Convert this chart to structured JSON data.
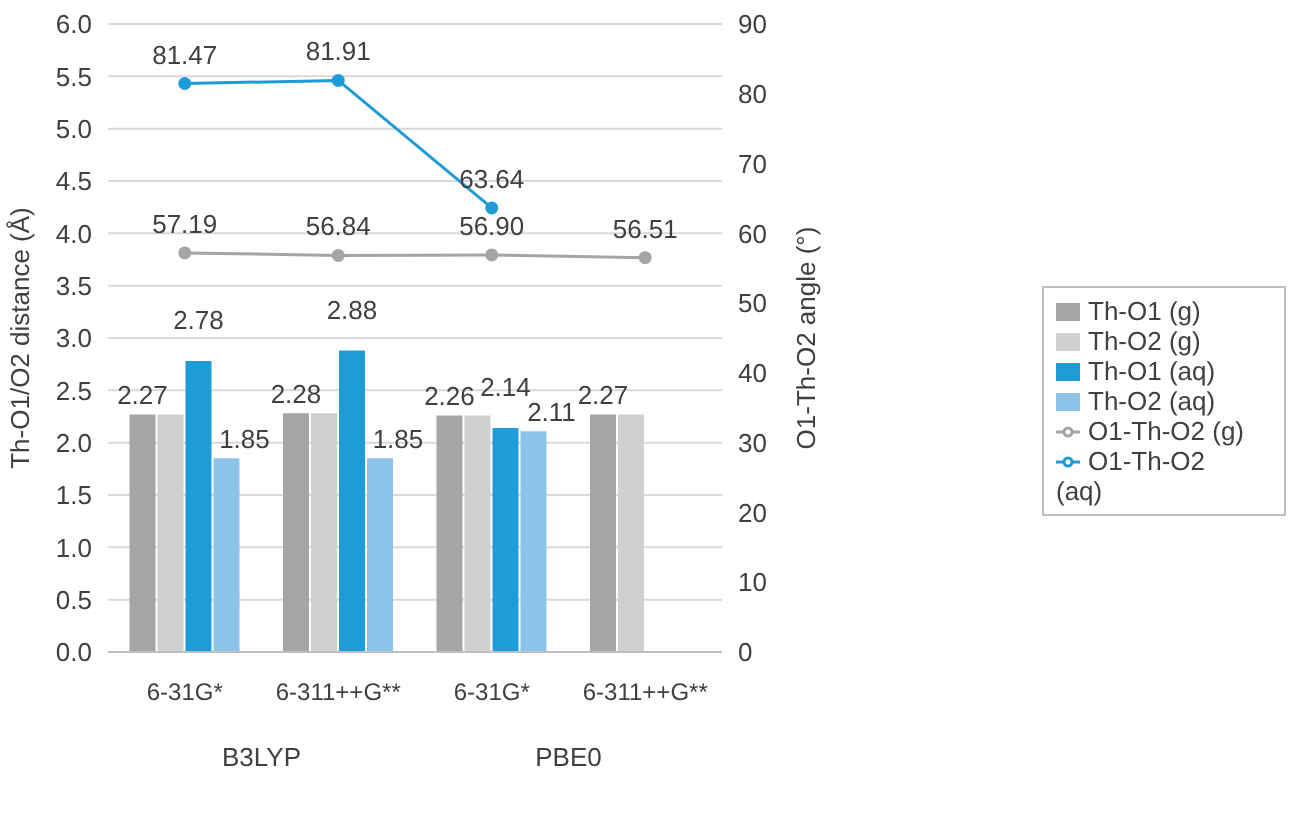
{
  "chart_data": {
    "type": "bar",
    "ylabel": "Th-O1/O2 distance (Å)",
    "y2label": "O1-Th-O2 angle (°)",
    "categories": [
      "6-31G*",
      "6-311++G**",
      "6-31G*",
      "6-311++G**"
    ],
    "annotations": [
      "B3LYP",
      "PBE0"
    ],
    "series": [
      {
        "name": "Th-O1 (g)",
        "color": "#a5a5a5",
        "values": [
          2.27,
          2.28,
          2.26,
          2.27
        ],
        "value_labels": [
          "2.27",
          "2.28",
          "2.26",
          "2.27"
        ]
      },
      {
        "name": "Th-O2 (g)",
        "color": "#d0d0d0",
        "values": [
          2.27,
          2.28,
          2.26,
          2.27
        ]
      },
      {
        "name": "Th-O1 (aq)",
        "color": "#1f9bd7",
        "values": [
          2.78,
          2.88,
          2.14,
          null
        ],
        "value_labels": [
          "2.78",
          "2.88",
          "2.14",
          null
        ]
      },
      {
        "name": "Th-O2 (aq)",
        "color": "#8dc4ea",
        "values": [
          1.85,
          1.85,
          2.11,
          null
        ],
        "value_labels": [
          "1.85",
          "1.85",
          "2.11",
          null
        ]
      },
      {
        "name": "O1-Th-O2 (g)",
        "type": "line",
        "axis": "y2",
        "color": "#a5a5a5",
        "values": [
          57.19,
          56.84,
          56.9,
          56.51
        ],
        "value_labels": [
          "57.19",
          "56.84",
          "56.90",
          "56.51"
        ]
      },
      {
        "name": "O1-Th-O2 (aq)",
        "type": "line",
        "axis": "y2",
        "color": "#1f9bd7",
        "values": [
          81.47,
          81.91,
          63.64,
          null
        ],
        "value_labels": [
          "81.47",
          "81.91",
          "63.64",
          null
        ]
      }
    ],
    "ylim": [
      0,
      6
    ],
    "yticks": [
      {
        "value": 0,
        "label": "0.0"
      },
      {
        "value": 0.5,
        "label": "0.5"
      },
      {
        "value": 1,
        "label": "1.0"
      },
      {
        "value": 1.5,
        "label": "1.5"
      },
      {
        "value": 2,
        "label": "2.0"
      },
      {
        "value": 2.5,
        "label": "2.5"
      },
      {
        "value": 3,
        "label": "3.0"
      },
      {
        "value": 3.5,
        "label": "3.5"
      },
      {
        "value": 4,
        "label": "4.0"
      },
      {
        "value": 4.5,
        "label": "4.5"
      },
      {
        "value": 5,
        "label": "5.0"
      },
      {
        "value": 5.5,
        "label": "5.5"
      },
      {
        "value": 6,
        "label": "6.0"
      }
    ],
    "y2lim": [
      0,
      90
    ],
    "y2ticks": [
      0,
      10,
      20,
      30,
      40,
      50,
      60,
      70,
      80,
      90
    ],
    "grid": "y",
    "legend": "right",
    "marker": "circle"
  }
}
